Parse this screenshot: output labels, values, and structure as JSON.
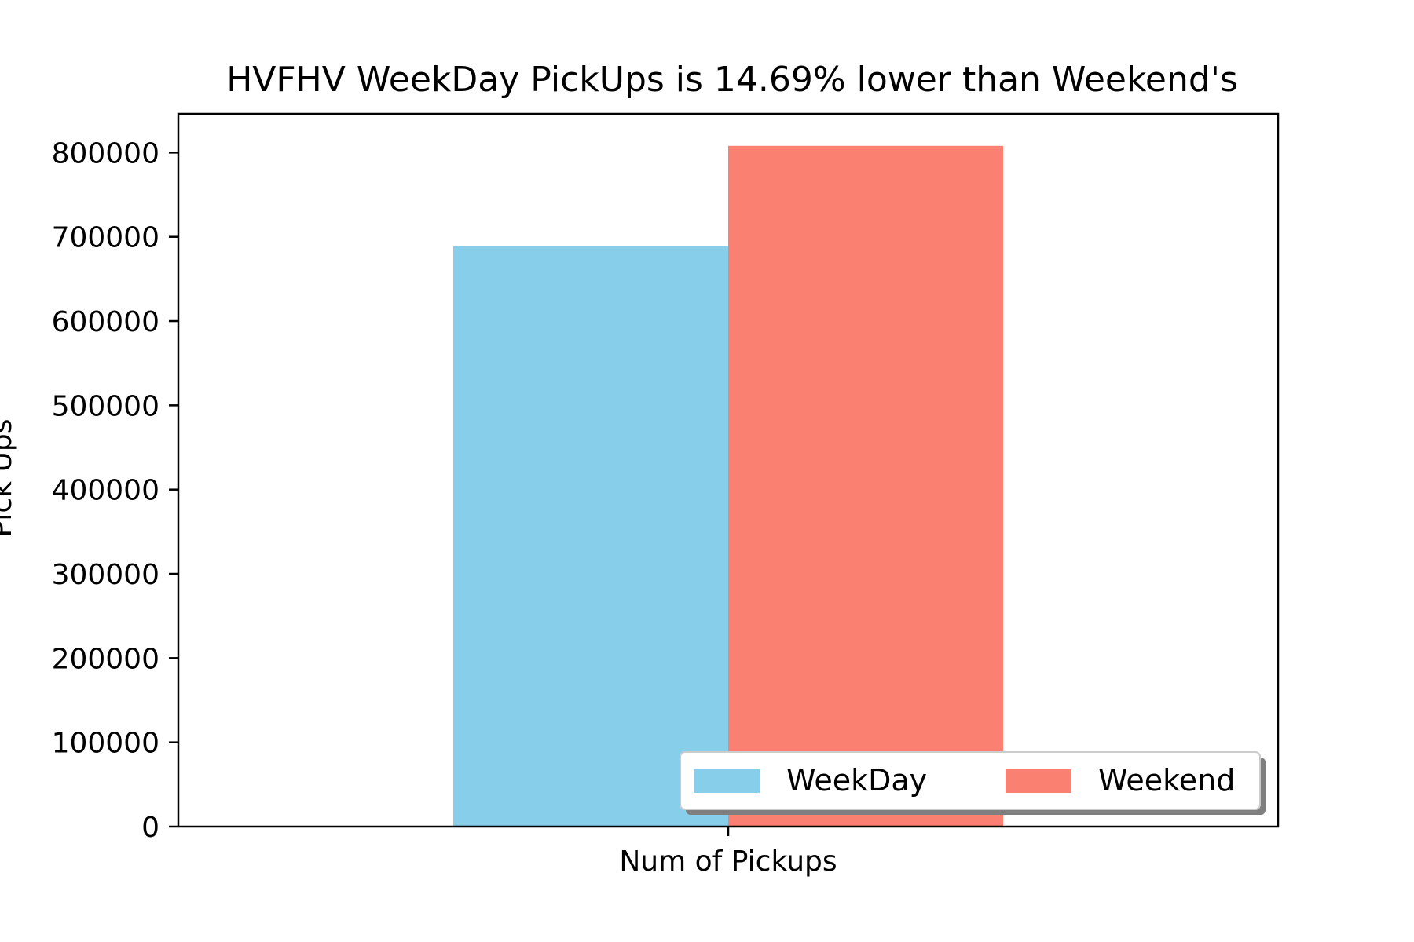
{
  "chart_data": {
    "type": "bar",
    "title": "HVFHV WeekDay PickUps is 14.69% lower than Weekend's",
    "xlabel": "",
    "ylabel": "Pick Ups",
    "categories": [
      "Num of Pickups"
    ],
    "series": [
      {
        "name": "WeekDay",
        "values": [
          689000
        ],
        "color": "#87CEEB"
      },
      {
        "name": "Weekend",
        "values": [
          808000
        ],
        "color": "#FA8072"
      }
    ],
    "ylim": [
      0,
      846000
    ],
    "yticks": [
      0,
      100000,
      200000,
      300000,
      400000,
      500000,
      600000,
      700000,
      800000
    ],
    "grid": false,
    "legend": {
      "placement": "lower-right",
      "columns": 2,
      "shadow": true
    }
  }
}
